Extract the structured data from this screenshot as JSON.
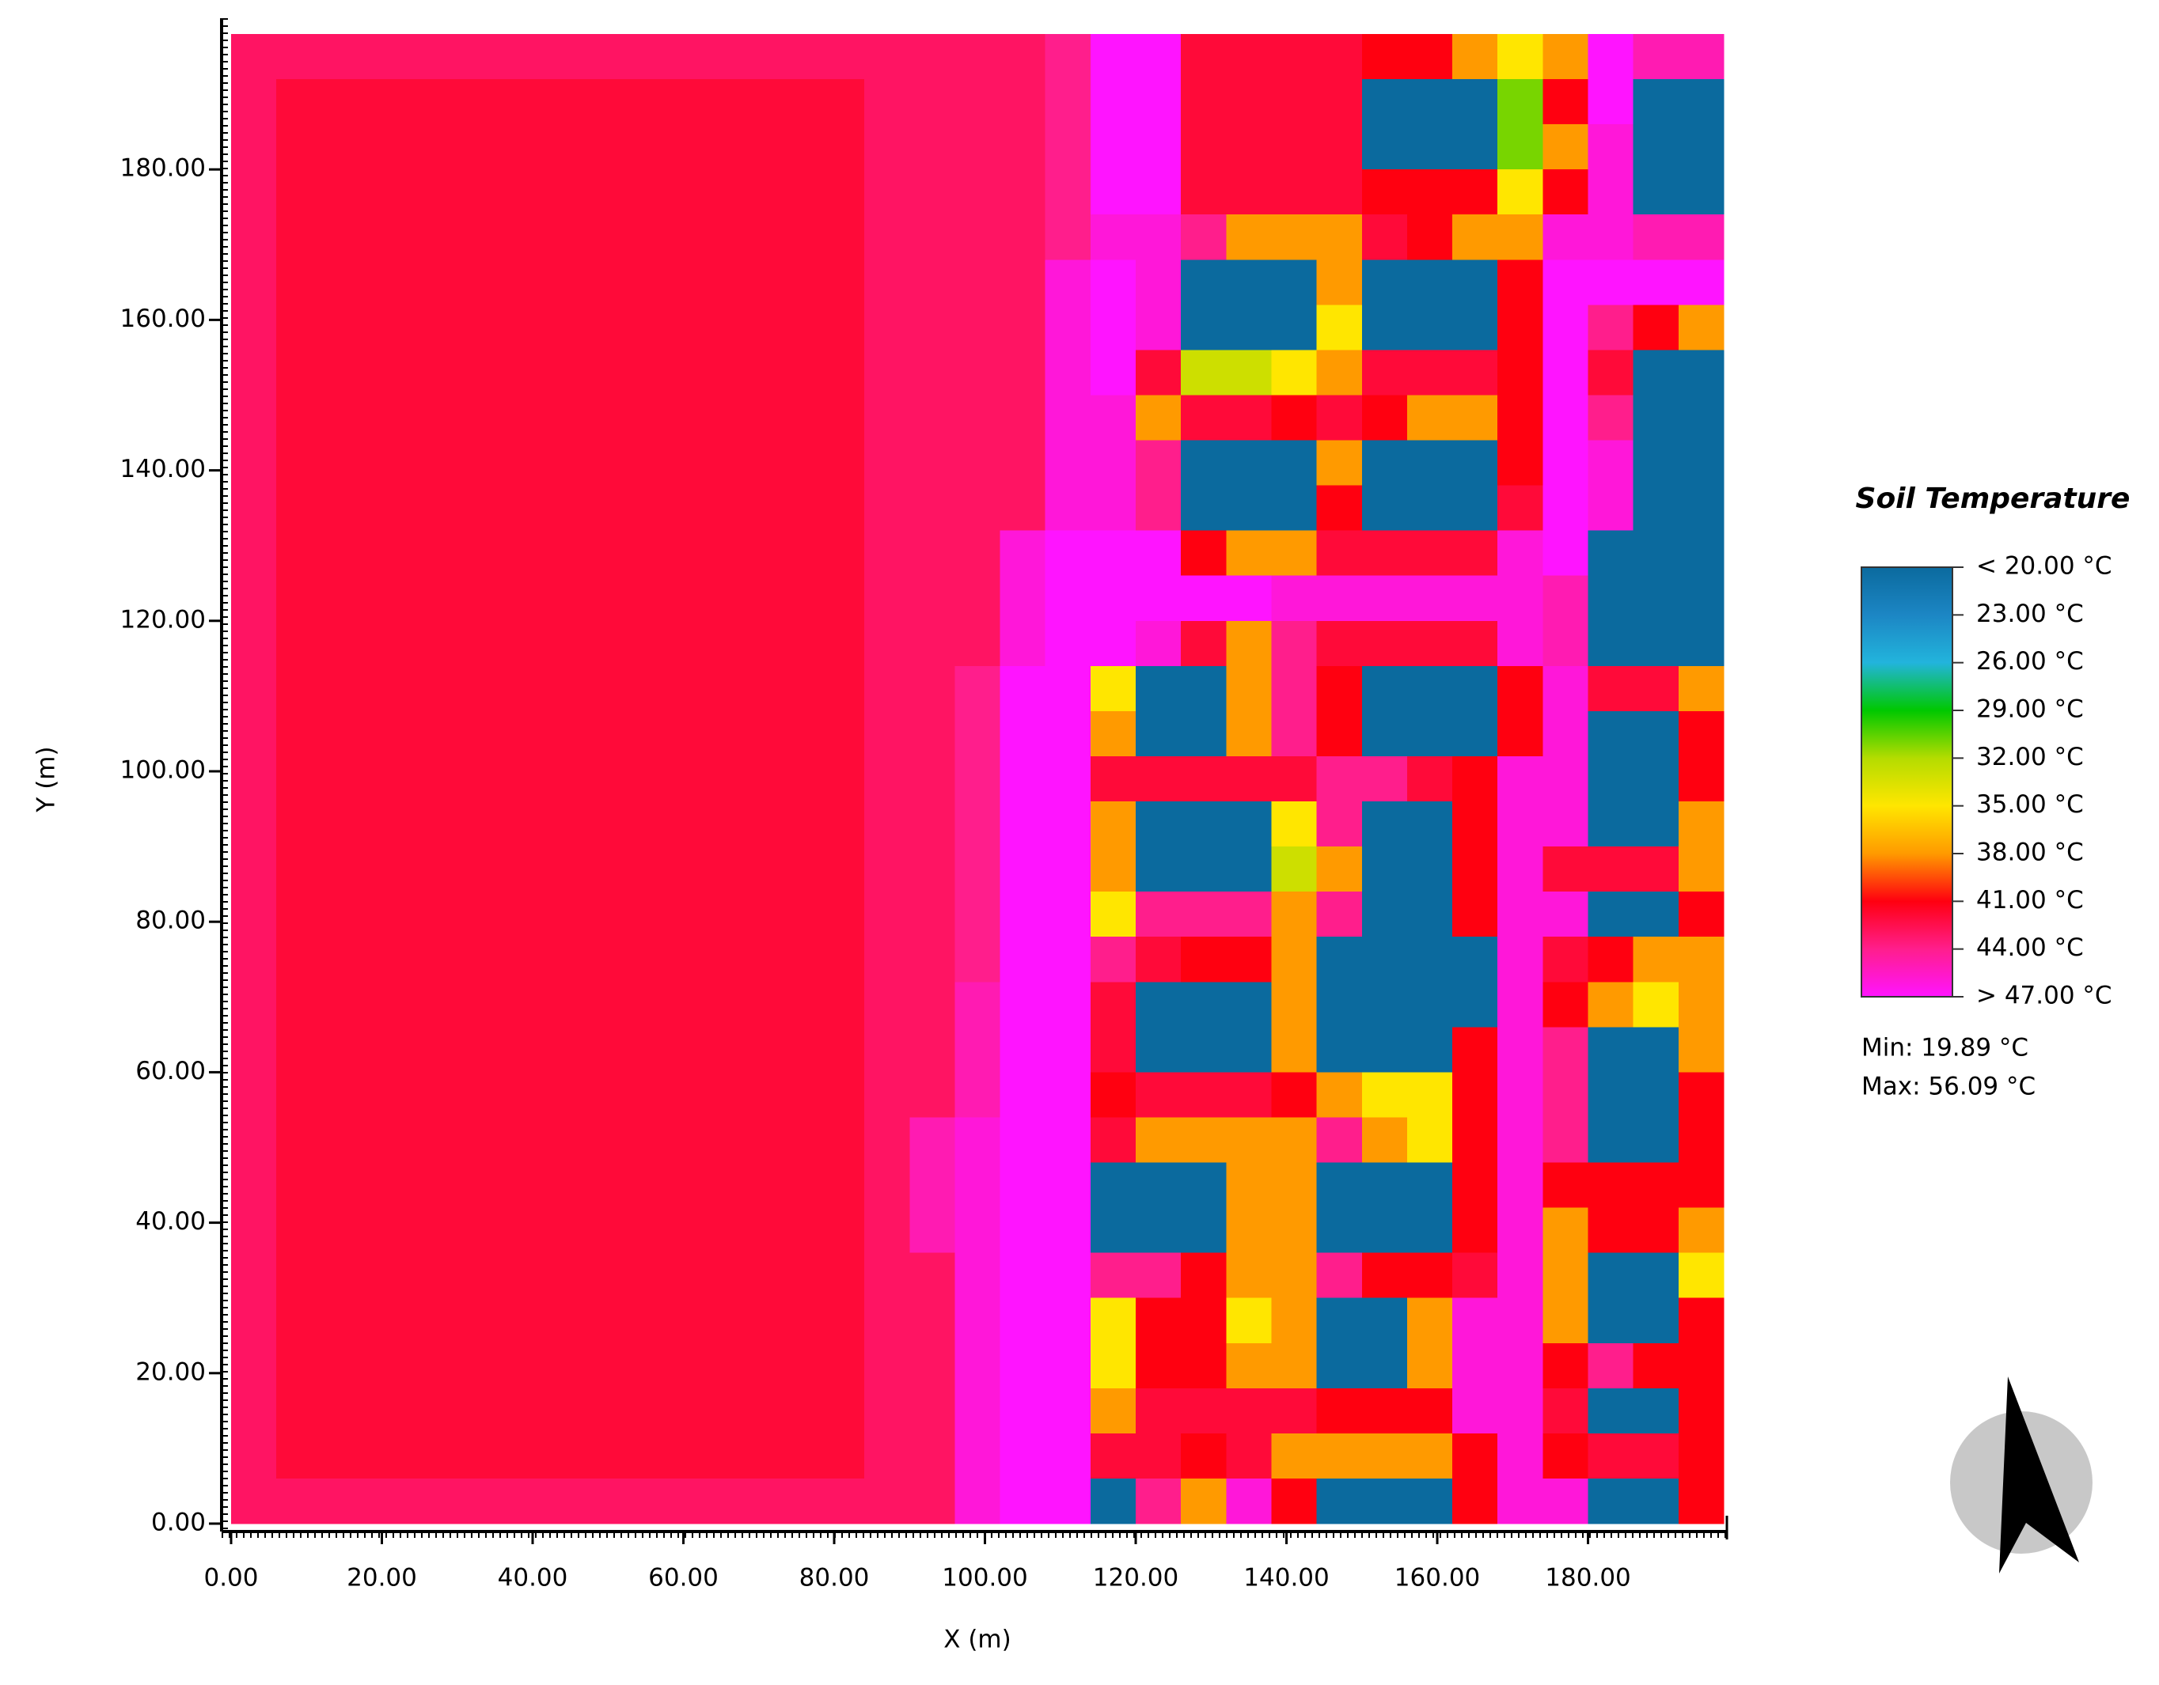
{
  "chart_data": {
    "type": "heatmap",
    "xlabel": "X (m)",
    "ylabel": "Y (m)",
    "xlim": [
      0,
      198
    ],
    "ylim": [
      0,
      198
    ],
    "xticks": [
      {
        "value": 0,
        "label": "0.00"
      },
      {
        "value": 20,
        "label": "20.00"
      },
      {
        "value": 40,
        "label": "40.00"
      },
      {
        "value": 60,
        "label": "60.00"
      },
      {
        "value": 80,
        "label": "80.00"
      },
      {
        "value": 100,
        "label": "100.00"
      },
      {
        "value": 120,
        "label": "120.00"
      },
      {
        "value": 140,
        "label": "140.00"
      },
      {
        "value": 160,
        "label": "160.00"
      },
      {
        "value": 180,
        "label": "180.00"
      }
    ],
    "yticks": [
      {
        "value": 0,
        "label": "0.00"
      },
      {
        "value": 20,
        "label": "20.00"
      },
      {
        "value": 40,
        "label": "40.00"
      },
      {
        "value": 60,
        "label": "60.00"
      },
      {
        "value": 80,
        "label": "80.00"
      },
      {
        "value": 100,
        "label": "100.00"
      },
      {
        "value": 120,
        "label": "120.00"
      },
      {
        "value": 140,
        "label": "140.00"
      },
      {
        "value": 160,
        "label": "160.00"
      },
      {
        "value": 180,
        "label": "180.00"
      }
    ],
    "x": [
      3,
      9,
      15,
      21,
      27,
      33,
      39,
      45,
      51,
      57,
      63,
      69,
      75,
      81,
      87,
      93,
      99,
      105,
      111,
      117,
      123,
      129,
      135,
      141,
      147,
      153,
      159,
      165,
      171,
      177,
      183,
      189,
      195
    ],
    "y": [
      195,
      189,
      183,
      177,
      171,
      165,
      159,
      153,
      147,
      141,
      135,
      129,
      123,
      117,
      111,
      105,
      99,
      93,
      87,
      81,
      75,
      69,
      63,
      57,
      51,
      45,
      39,
      33,
      27,
      21,
      15,
      9,
      3
    ],
    "z": [
      [
        43,
        43,
        43,
        43,
        43,
        43,
        43,
        43,
        43,
        43,
        43,
        43,
        43,
        43,
        43,
        43,
        43,
        43,
        44,
        47,
        47,
        42,
        42,
        42,
        42,
        41,
        41,
        38,
        35,
        38,
        47,
        45,
        45
      ],
      [
        43,
        42,
        42,
        42,
        42,
        42,
        42,
        42,
        42,
        42,
        42,
        42,
        42,
        42,
        43,
        43,
        43,
        43,
        44,
        47,
        47,
        42,
        42,
        42,
        42,
        19,
        19,
        19,
        31,
        41,
        47,
        19,
        19
      ],
      [
        43,
        42,
        42,
        42,
        42,
        42,
        42,
        42,
        42,
        42,
        42,
        42,
        42,
        42,
        43,
        43,
        43,
        43,
        44,
        47,
        47,
        42,
        42,
        42,
        42,
        19,
        19,
        19,
        31,
        38,
        46,
        19,
        19
      ],
      [
        43,
        42,
        42,
        42,
        42,
        42,
        42,
        42,
        42,
        42,
        42,
        42,
        42,
        42,
        43,
        43,
        43,
        43,
        44,
        47,
        47,
        42,
        42,
        42,
        42,
        41,
        41,
        41,
        35,
        41,
        46,
        19,
        19
      ],
      [
        43,
        42,
        42,
        42,
        42,
        42,
        42,
        42,
        42,
        42,
        42,
        42,
        42,
        42,
        43,
        43,
        43,
        43,
        44,
        46,
        46,
        44,
        38,
        38,
        38,
        42,
        41,
        38,
        38,
        46,
        46,
        45,
        45
      ],
      [
        43,
        42,
        42,
        42,
        42,
        42,
        42,
        42,
        42,
        42,
        42,
        42,
        42,
        42,
        43,
        43,
        43,
        43,
        46,
        47,
        46,
        19,
        19,
        19,
        38,
        19,
        19,
        19,
        41,
        47,
        47,
        47,
        47
      ],
      [
        43,
        42,
        42,
        42,
        42,
        42,
        42,
        42,
        42,
        42,
        42,
        42,
        42,
        42,
        43,
        43,
        43,
        43,
        46,
        47,
        46,
        19,
        19,
        19,
        35,
        19,
        19,
        19,
        41,
        47,
        44,
        41,
        38
      ],
      [
        43,
        42,
        42,
        42,
        42,
        42,
        42,
        42,
        42,
        42,
        42,
        42,
        42,
        42,
        43,
        43,
        43,
        43,
        46,
        47,
        42,
        33,
        33,
        35,
        38,
        42,
        42,
        42,
        41,
        47,
        42,
        19,
        19
      ],
      [
        43,
        42,
        42,
        42,
        42,
        42,
        42,
        42,
        42,
        42,
        42,
        42,
        42,
        42,
        43,
        43,
        43,
        43,
        46,
        46,
        38,
        42,
        42,
        41,
        42,
        41,
        38,
        38,
        41,
        47,
        44,
        19,
        19
      ],
      [
        43,
        42,
        42,
        42,
        42,
        42,
        42,
        42,
        42,
        42,
        42,
        42,
        42,
        42,
        43,
        43,
        43,
        43,
        46,
        46,
        44,
        19,
        19,
        19,
        38,
        19,
        19,
        19,
        41,
        47,
        46,
        19,
        19
      ],
      [
        43,
        42,
        42,
        42,
        42,
        42,
        42,
        42,
        42,
        42,
        42,
        42,
        42,
        42,
        43,
        43,
        43,
        43,
        46,
        46,
        44,
        19,
        19,
        19,
        41,
        19,
        19,
        19,
        42,
        47,
        46,
        19,
        19
      ],
      [
        43,
        42,
        42,
        42,
        42,
        42,
        42,
        42,
        42,
        42,
        42,
        42,
        42,
        42,
        43,
        43,
        43,
        46,
        47,
        47,
        47,
        41,
        38,
        38,
        42,
        42,
        42,
        42,
        46,
        47,
        19,
        19,
        19
      ],
      [
        43,
        42,
        42,
        42,
        42,
        42,
        42,
        42,
        42,
        42,
        42,
        42,
        42,
        42,
        43,
        43,
        43,
        46,
        47,
        47,
        47,
        47,
        47,
        46,
        46,
        46,
        46,
        46,
        46,
        45,
        19,
        19,
        19
      ],
      [
        43,
        42,
        42,
        42,
        42,
        42,
        42,
        42,
        42,
        42,
        42,
        42,
        42,
        42,
        43,
        43,
        43,
        46,
        47,
        47,
        46,
        42,
        38,
        44,
        42,
        42,
        42,
        42,
        46,
        45,
        19,
        19,
        19
      ],
      [
        43,
        42,
        42,
        42,
        42,
        42,
        42,
        42,
        42,
        42,
        42,
        42,
        42,
        42,
        43,
        43,
        44,
        47,
        47,
        35,
        19,
        19,
        38,
        44,
        41,
        19,
        19,
        19,
        41,
        46,
        42,
        42,
        38
      ],
      [
        43,
        42,
        42,
        42,
        42,
        42,
        42,
        42,
        42,
        42,
        42,
        42,
        42,
        42,
        43,
        43,
        44,
        47,
        47,
        38,
        19,
        19,
        38,
        44,
        41,
        19,
        19,
        19,
        41,
        46,
        19,
        19,
        41
      ],
      [
        43,
        42,
        42,
        42,
        42,
        42,
        42,
        42,
        42,
        42,
        42,
        42,
        42,
        42,
        43,
        43,
        44,
        47,
        47,
        42,
        42,
        42,
        42,
        42,
        44,
        44,
        42,
        41,
        46,
        46,
        19,
        19,
        41
      ],
      [
        43,
        42,
        42,
        42,
        42,
        42,
        42,
        42,
        42,
        42,
        42,
        42,
        42,
        42,
        43,
        43,
        44,
        47,
        47,
        38,
        19,
        19,
        19,
        35,
        44,
        19,
        19,
        41,
        46,
        46,
        19,
        19,
        38
      ],
      [
        43,
        42,
        42,
        42,
        42,
        42,
        42,
        42,
        42,
        42,
        42,
        42,
        42,
        42,
        43,
        43,
        44,
        47,
        47,
        38,
        19,
        19,
        19,
        33,
        38,
        19,
        19,
        41,
        46,
        42,
        42,
        42,
        38
      ],
      [
        43,
        42,
        42,
        42,
        42,
        42,
        42,
        42,
        42,
        42,
        42,
        42,
        42,
        42,
        43,
        43,
        44,
        47,
        47,
        35,
        44,
        44,
        44,
        38,
        44,
        19,
        19,
        41,
        46,
        46,
        19,
        19,
        41
      ],
      [
        43,
        42,
        42,
        42,
        42,
        42,
        42,
        42,
        42,
        42,
        42,
        42,
        42,
        42,
        43,
        43,
        44,
        47,
        47,
        44,
        42,
        41,
        41,
        38,
        19,
        19,
        19,
        19,
        46,
        42,
        41,
        38,
        38
      ],
      [
        43,
        42,
        42,
        42,
        42,
        42,
        42,
        42,
        42,
        42,
        42,
        42,
        42,
        42,
        43,
        43,
        45,
        47,
        47,
        42,
        19,
        19,
        19,
        38,
        19,
        19,
        19,
        19,
        46,
        41,
        38,
        35,
        38
      ],
      [
        43,
        42,
        42,
        42,
        42,
        42,
        42,
        42,
        42,
        42,
        42,
        42,
        42,
        42,
        43,
        43,
        45,
        47,
        47,
        42,
        19,
        19,
        19,
        38,
        19,
        19,
        19,
        41,
        46,
        44,
        19,
        19,
        38
      ],
      [
        43,
        42,
        42,
        42,
        42,
        42,
        42,
        42,
        42,
        42,
        42,
        42,
        42,
        42,
        43,
        43,
        45,
        47,
        47,
        41,
        42,
        42,
        42,
        41,
        38,
        35,
        35,
        41,
        46,
        44,
        19,
        19,
        41
      ],
      [
        43,
        42,
        42,
        42,
        42,
        42,
        42,
        42,
        42,
        42,
        42,
        42,
        42,
        42,
        43,
        45,
        46,
        47,
        47,
        42,
        38,
        38,
        38,
        38,
        44,
        38,
        35,
        41,
        46,
        44,
        19,
        19,
        41
      ],
      [
        43,
        42,
        42,
        42,
        42,
        42,
        42,
        42,
        42,
        42,
        42,
        42,
        42,
        42,
        43,
        45,
        46,
        47,
        47,
        19,
        19,
        19,
        38,
        38,
        19,
        19,
        19,
        41,
        46,
        41,
        41,
        41,
        41
      ],
      [
        43,
        42,
        42,
        42,
        42,
        42,
        42,
        42,
        42,
        42,
        42,
        42,
        42,
        42,
        43,
        45,
        46,
        47,
        47,
        19,
        19,
        19,
        38,
        38,
        19,
        19,
        19,
        41,
        46,
        38,
        41,
        41,
        38
      ],
      [
        43,
        42,
        42,
        42,
        42,
        42,
        42,
        42,
        42,
        42,
        42,
        42,
        42,
        42,
        43,
        43,
        46,
        47,
        47,
        44,
        44,
        41,
        38,
        38,
        44,
        41,
        41,
        42,
        46,
        38,
        19,
        19,
        35
      ],
      [
        43,
        42,
        42,
        42,
        42,
        42,
        42,
        42,
        42,
        42,
        42,
        42,
        42,
        42,
        43,
        43,
        46,
        47,
        47,
        35,
        41,
        41,
        35,
        38,
        19,
        19,
        38,
        46,
        46,
        38,
        19,
        19,
        41
      ],
      [
        43,
        42,
        42,
        42,
        42,
        42,
        42,
        42,
        42,
        42,
        42,
        42,
        42,
        42,
        43,
        43,
        46,
        47,
        47,
        35,
        41,
        41,
        38,
        38,
        19,
        19,
        38,
        46,
        46,
        41,
        44,
        41,
        41
      ],
      [
        43,
        42,
        42,
        42,
        42,
        42,
        42,
        42,
        42,
        42,
        42,
        42,
        42,
        42,
        43,
        43,
        46,
        47,
        47,
        38,
        42,
        42,
        42,
        42,
        41,
        41,
        41,
        46,
        46,
        42,
        19,
        19,
        41
      ],
      [
        43,
        42,
        42,
        42,
        42,
        42,
        42,
        42,
        42,
        42,
        42,
        42,
        42,
        42,
        43,
        43,
        46,
        47,
        47,
        42,
        42,
        41,
        42,
        38,
        38,
        38,
        38,
        41,
        46,
        41,
        42,
        42,
        41
      ],
      [
        43,
        43,
        43,
        43,
        43,
        43,
        43,
        43,
        43,
        43,
        43,
        43,
        43,
        43,
        43,
        43,
        46,
        47,
        47,
        19,
        44,
        38,
        46,
        41,
        19,
        19,
        19,
        41,
        46,
        46,
        19,
        19,
        41
      ]
    ],
    "colorbar": {
      "title": "Soil Temperature",
      "ticks": [
        {
          "value": 20,
          "label": "< 20.00 °C"
        },
        {
          "value": 23,
          "label": "23.00  °C"
        },
        {
          "value": 26,
          "label": "26.00  °C"
        },
        {
          "value": 29,
          "label": "29.00  °C"
        },
        {
          "value": 32,
          "label": "32.00  °C"
        },
        {
          "value": 35,
          "label": "35.00  °C"
        },
        {
          "value": 38,
          "label": "38.00  °C"
        },
        {
          "value": 41,
          "label": "41.00  °C"
        },
        {
          "value": 44,
          "label": "44.00  °C"
        },
        {
          "value": 47,
          "label": "> 47.00 °C"
        }
      ],
      "colors": [
        "#0b6a9e",
        "#1c86c4",
        "#22b4dc",
        "#00c800",
        "#b4dc00",
        "#ffe600",
        "#ff9a00",
        "#ff0010",
        "#ff1e8c",
        "#ff14ff"
      ],
      "min": {
        "value": 19.89,
        "label": "Min: 19.89 °C"
      },
      "max": {
        "value": 56.09,
        "label": "Max: 56.09 °C"
      }
    },
    "compass_label": "N"
  }
}
